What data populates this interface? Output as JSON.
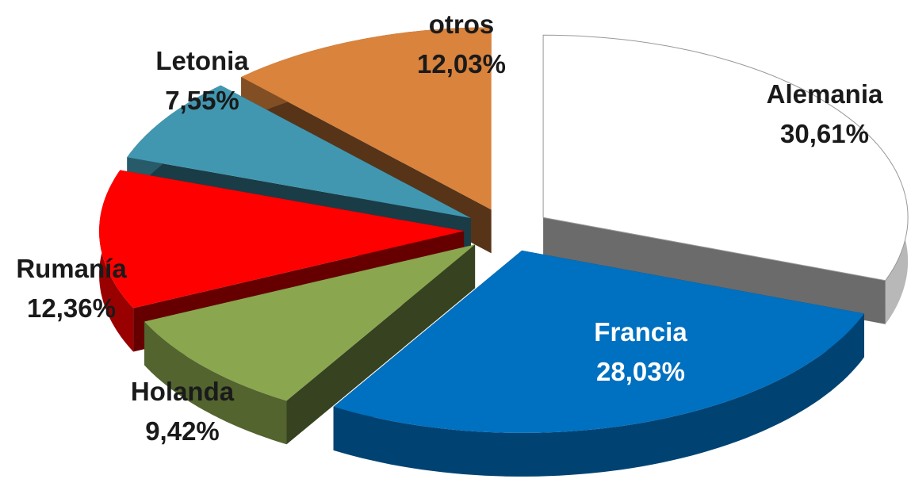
{
  "chart_data": {
    "type": "pie",
    "categories": [
      "Alemania",
      "Francia",
      "Holanda",
      "Rumanía",
      "Letonia",
      "otros"
    ],
    "values": [
      30.61,
      28.03,
      9.42,
      12.36,
      7.55,
      12.03
    ],
    "value_labels": [
      "30,61%",
      "28,03%",
      "9,42%",
      "12,36%",
      "7,55%",
      "12,03%"
    ],
    "colors": [
      "#ffffff",
      "#0070c0",
      "#8aa64f",
      "#ff0000",
      "#4197b0",
      "#d9833d"
    ]
  }
}
